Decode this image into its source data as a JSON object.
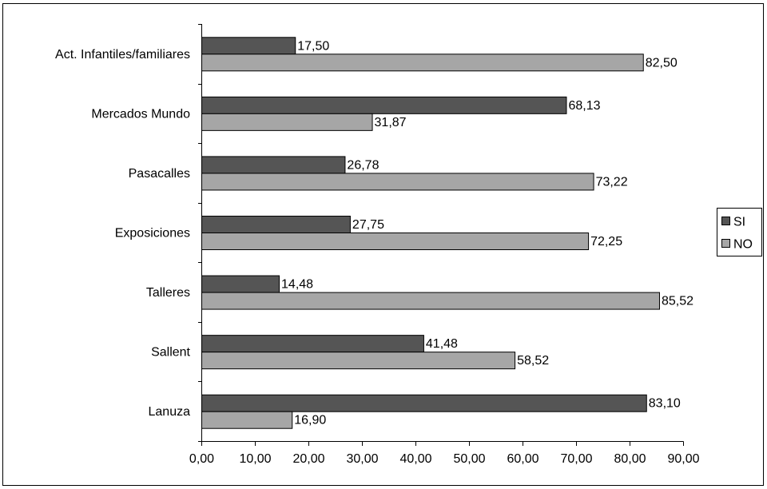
{
  "chart_data": {
    "type": "bar",
    "orientation": "horizontal",
    "categories": [
      "Act. Infantiles/familiares",
      "Mercados Mundo",
      "Pasacalles",
      "Exposiciones",
      "Talleres",
      "Sallent",
      "Lanuza"
    ],
    "series": [
      {
        "name": "SI",
        "color": "#555555",
        "values": [
          17.5,
          68.13,
          26.78,
          27.75,
          14.48,
          41.48,
          83.1
        ]
      },
      {
        "name": "NO",
        "color": "#a6a6a6",
        "values": [
          82.5,
          31.87,
          73.22,
          72.25,
          85.52,
          58.52,
          16.9
        ]
      }
    ],
    "data_labels": [
      [
        "17,50",
        "68,13",
        "26,78",
        "27,75",
        "14,48",
        "41,48",
        "83,10"
      ],
      [
        "82,50",
        "31,87",
        "73,22",
        "72,25",
        "85,52",
        "58,52",
        "16,90"
      ]
    ],
    "xticks": [
      0,
      10,
      20,
      30,
      40,
      50,
      60,
      70,
      80,
      90
    ],
    "xtick_labels": [
      "0,00",
      "10,00",
      "20,00",
      "30,00",
      "40,00",
      "50,00",
      "60,00",
      "70,00",
      "80,00",
      "90,00"
    ],
    "xlim": [
      0,
      90
    ],
    "title": "",
    "xlabel": "",
    "ylabel": "",
    "grid": false,
    "legend_position": "right"
  }
}
